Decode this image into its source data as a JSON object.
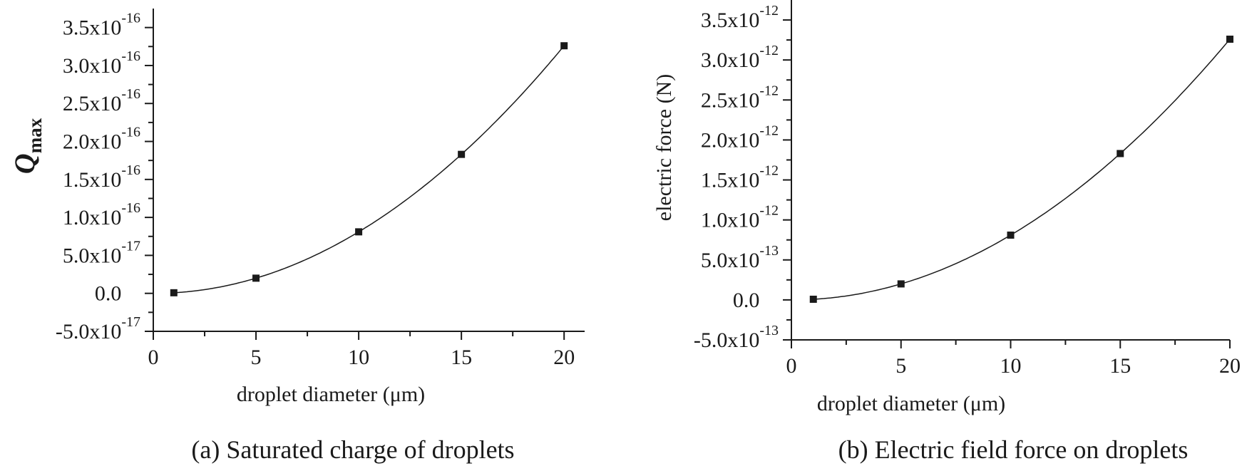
{
  "chart_data": [
    {
      "type": "scatter",
      "panel": "a",
      "caption": "(a) Saturated charge of droplets",
      "xlabel": "droplet diameter (μm)",
      "ylabel": "Q",
      "ylabel_subscript": "max",
      "xlim": [
        0,
        21
      ],
      "ylim": [
        -5e-17,
        3.75e-16
      ],
      "x_ticks": [
        {
          "value": 0,
          "label": "0"
        },
        {
          "value": 5,
          "label": "5"
        },
        {
          "value": 10,
          "label": "10"
        },
        {
          "value": 15,
          "label": "15"
        },
        {
          "value": 20,
          "label": "20"
        }
      ],
      "y_ticks": [
        {
          "value": -5e-17,
          "mantissa": "-5.0x10",
          "exponent": "-17"
        },
        {
          "value": 0,
          "mantissa": "0.0",
          "exponent": ""
        },
        {
          "value": 5e-17,
          "mantissa": "5.0x10",
          "exponent": "-17"
        },
        {
          "value": 1e-16,
          "mantissa": "1.0x10",
          "exponent": "-16"
        },
        {
          "value": 1.5e-16,
          "mantissa": "1.5x10",
          "exponent": "-16"
        },
        {
          "value": 2e-16,
          "mantissa": "2.0x10",
          "exponent": "-16"
        },
        {
          "value": 2.5e-16,
          "mantissa": "2.5x10",
          "exponent": "-16"
        },
        {
          "value": 3e-16,
          "mantissa": "3.0x10",
          "exponent": "-16"
        },
        {
          "value": 3.5e-16,
          "mantissa": "3.5x10",
          "exponent": "-16"
        }
      ],
      "series": [
        {
          "marker": "square",
          "fit_line": "quadratic",
          "x": [
            1,
            5,
            10,
            15,
            20
          ],
          "y": [
            8e-19,
            2e-17,
            8.1e-17,
            1.83e-16,
            3.26e-16
          ]
        }
      ],
      "grid": false,
      "legend": "none"
    },
    {
      "type": "scatter",
      "panel": "b",
      "caption": "(b)  Electric field force on droplets",
      "xlabel": "droplet diameter (μm)",
      "ylabel": "electric force (N)",
      "xlim": [
        0,
        20
      ],
      "ylim": [
        -5e-13,
        3.75e-12
      ],
      "x_ticks": [
        {
          "value": 0,
          "label": "0"
        },
        {
          "value": 5,
          "label": "5"
        },
        {
          "value": 10,
          "label": "10"
        },
        {
          "value": 15,
          "label": "15"
        },
        {
          "value": 20,
          "label": "20"
        }
      ],
      "y_ticks": [
        {
          "value": -5e-13,
          "mantissa": "-5.0x10",
          "exponent": "-13"
        },
        {
          "value": 0,
          "mantissa": "0.0",
          "exponent": ""
        },
        {
          "value": 5e-13,
          "mantissa": "5.0x10",
          "exponent": "-13"
        },
        {
          "value": 1e-12,
          "mantissa": "1.0x10",
          "exponent": "-12"
        },
        {
          "value": 1.5e-12,
          "mantissa": "1.5x10",
          "exponent": "-12"
        },
        {
          "value": 2e-12,
          "mantissa": "2.0x10",
          "exponent": "-12"
        },
        {
          "value": 2.5e-12,
          "mantissa": "2.5x10",
          "exponent": "-12"
        },
        {
          "value": 3e-12,
          "mantissa": "3.0x10",
          "exponent": "-12"
        },
        {
          "value": 3.5e-12,
          "mantissa": "3.5x10",
          "exponent": "-12"
        }
      ],
      "series": [
        {
          "marker": "square",
          "fit_line": "quadratic",
          "x": [
            1,
            5,
            10,
            15,
            20
          ],
          "y": [
            8e-15,
            2e-13,
            8.1e-13,
            1.83e-12,
            3.26e-12
          ]
        }
      ],
      "grid": false,
      "legend": "none"
    }
  ]
}
